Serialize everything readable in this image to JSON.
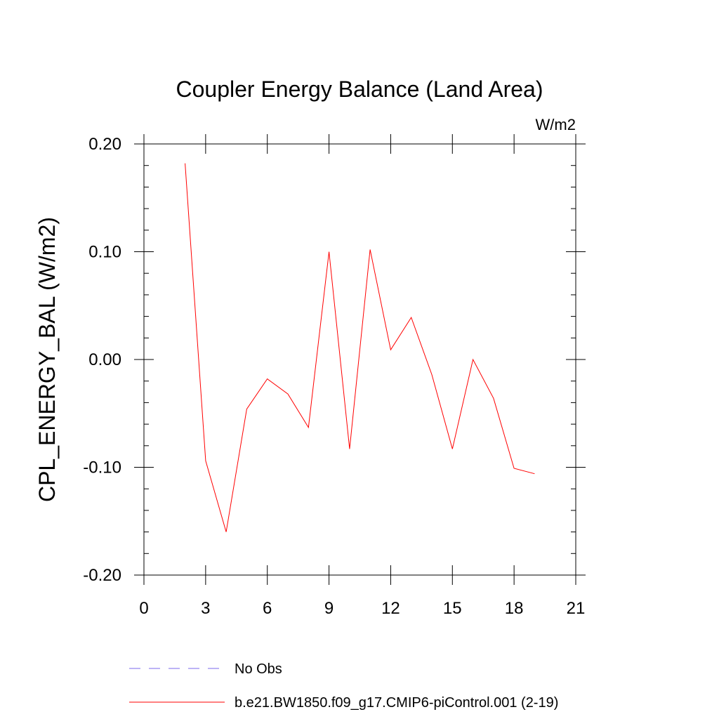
{
  "chart_data": {
    "type": "line",
    "title": "Coupler Energy Balance (Land Area)",
    "units_label": "W/m2",
    "xlabel": "",
    "ylabel": "CPL_ENERGY_BAL  (W/m2)",
    "xlim": [
      0,
      21
    ],
    "ylim": [
      -0.2,
      0.2
    ],
    "xticks": [
      0,
      3,
      6,
      9,
      12,
      15,
      18,
      21
    ],
    "xtick_labels": [
      "0",
      "3",
      "6",
      "9",
      "12",
      "15",
      "18",
      "21"
    ],
    "yticks": [
      0.2,
      0.1,
      0.0,
      -0.1,
      -0.2
    ],
    "ytick_labels": [
      "0.20",
      "0.10",
      "0.00",
      "-0.10",
      "-0.20"
    ],
    "grid": false,
    "legend_position": "bottom",
    "series": [
      {
        "name": "No Obs",
        "color": "#7b68ee",
        "style": "dashed",
        "x": [],
        "y": []
      },
      {
        "name": "b.e21.BW1850.f09_g17.CMIP6-piControl.001 (2-19)",
        "color": "#ff0000",
        "style": "solid",
        "x": [
          2,
          3,
          4,
          5,
          6,
          7,
          8,
          9,
          10,
          11,
          12,
          13,
          14,
          15,
          16,
          17,
          18,
          19
        ],
        "y": [
          0.182,
          -0.094,
          -0.16,
          -0.046,
          -0.018,
          -0.032,
          -0.063,
          0.1,
          -0.083,
          0.102,
          0.009,
          0.039,
          -0.014,
          -0.083,
          0.0,
          -0.036,
          -0.101,
          -0.106
        ]
      }
    ]
  }
}
